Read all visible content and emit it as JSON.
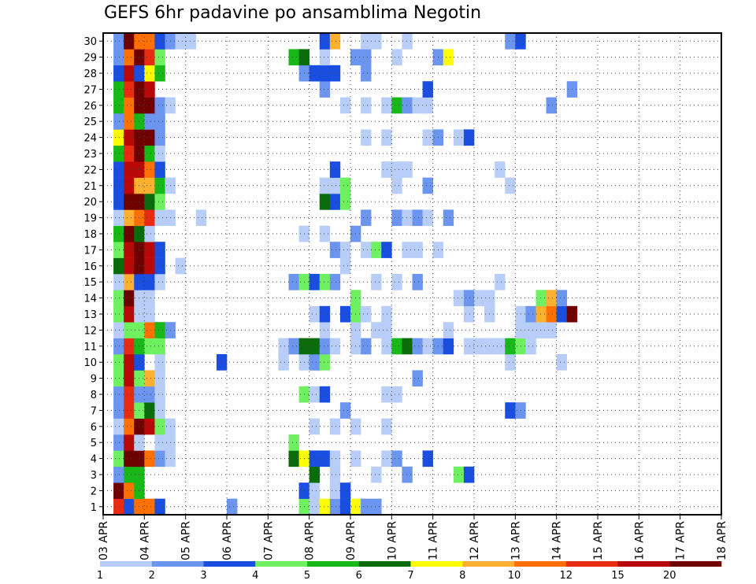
{
  "chart_data": {
    "type": "heatmap",
    "title": "GEFS 6hr padavine po ansamblima Negotin",
    "xlabel": "",
    "ylabel": "",
    "x_tick_labels": [
      "03 APR",
      "04 APR",
      "05 APR",
      "06 APR",
      "07 APR",
      "08 APR",
      "09 APR",
      "10 APR",
      "11 APR",
      "12 APR",
      "13 APR",
      "14 APR",
      "15 APR",
      "16 APR",
      "17 APR",
      "18 APR"
    ],
    "y_tick_labels": [
      "1",
      "2",
      "3",
      "4",
      "5",
      "6",
      "7",
      "8",
      "9",
      "10",
      "11",
      "12",
      "13",
      "14",
      "15",
      "16",
      "17",
      "18",
      "19",
      "20",
      "21",
      "22",
      "23",
      "24",
      "25",
      "26",
      "27",
      "28",
      "29",
      "30"
    ],
    "x_range_steps": [
      0,
      60
    ],
    "y_range_members": [
      0,
      30
    ],
    "step_hours": 6,
    "grid": "dotted",
    "colorbar": {
      "boundaries": [
        "1",
        "2",
        "3",
        "4",
        "5",
        "6",
        "7",
        "8",
        "10",
        "12",
        "15",
        "20"
      ],
      "colors": [
        "#b8cef8",
        "#6c95f0",
        "#1a4ee0",
        "#6ef060",
        "#18b818",
        "#0a6c0a",
        "#ffff00",
        "#ffb030",
        "#ff7000",
        "#e82c14",
        "#b80808",
        "#6e0000"
      ]
    },
    "legend_placement": "bottom",
    "cells": [
      [
        1,
        2,
        10
      ],
      [
        1,
        3,
        3
      ],
      [
        1,
        4,
        9
      ],
      [
        1,
        5,
        9
      ],
      [
        1,
        6,
        3
      ],
      [
        1,
        13,
        2
      ],
      [
        1,
        20,
        4
      ],
      [
        1,
        21,
        1
      ],
      [
        1,
        22,
        7
      ],
      [
        1,
        23,
        2
      ],
      [
        1,
        24,
        3
      ],
      [
        1,
        25,
        7
      ],
      [
        1,
        26,
        2
      ],
      [
        1,
        27,
        2
      ],
      [
        2,
        2,
        12
      ],
      [
        2,
        3,
        9
      ],
      [
        2,
        4,
        5
      ],
      [
        2,
        20,
        3
      ],
      [
        2,
        21,
        1
      ],
      [
        2,
        23,
        1
      ],
      [
        2,
        24,
        3
      ],
      [
        3,
        2,
        2
      ],
      [
        3,
        3,
        5
      ],
      [
        3,
        4,
        5
      ],
      [
        3,
        21,
        6
      ],
      [
        3,
        23,
        1
      ],
      [
        3,
        27,
        1
      ],
      [
        3,
        30,
        2
      ],
      [
        3,
        35,
        4
      ],
      [
        3,
        36,
        3
      ],
      [
        4,
        2,
        4
      ],
      [
        4,
        3,
        12
      ],
      [
        4,
        4,
        12
      ],
      [
        4,
        5,
        9
      ],
      [
        4,
        6,
        2
      ],
      [
        4,
        7,
        1
      ],
      [
        4,
        19,
        6
      ],
      [
        4,
        20,
        7
      ],
      [
        4,
        21,
        3
      ],
      [
        4,
        22,
        3
      ],
      [
        4,
        23,
        1
      ],
      [
        4,
        25,
        1
      ],
      [
        4,
        28,
        1
      ],
      [
        4,
        29,
        2
      ],
      [
        4,
        32,
        3
      ],
      [
        5,
        2,
        2
      ],
      [
        5,
        3,
        11
      ],
      [
        5,
        4,
        1
      ],
      [
        5,
        6,
        1
      ],
      [
        5,
        7,
        1
      ],
      [
        5,
        19,
        4
      ],
      [
        6,
        2,
        1
      ],
      [
        6,
        3,
        9
      ],
      [
        6,
        4,
        12
      ],
      [
        6,
        5,
        11
      ],
      [
        6,
        6,
        4
      ],
      [
        6,
        7,
        1
      ],
      [
        6,
        21,
        1
      ],
      [
        6,
        23,
        1
      ],
      [
        6,
        25,
        1
      ],
      [
        6,
        28,
        1
      ],
      [
        7,
        2,
        2
      ],
      [
        7,
        3,
        10
      ],
      [
        7,
        4,
        4
      ],
      [
        7,
        5,
        6
      ],
      [
        7,
        6,
        1
      ],
      [
        7,
        24,
        2
      ],
      [
        7,
        40,
        3
      ],
      [
        7,
        41,
        2
      ],
      [
        8,
        2,
        2
      ],
      [
        8,
        3,
        10
      ],
      [
        8,
        4,
        2
      ],
      [
        8,
        5,
        2
      ],
      [
        8,
        6,
        1
      ],
      [
        8,
        20,
        4
      ],
      [
        8,
        21,
        1
      ],
      [
        8,
        22,
        3
      ],
      [
        8,
        28,
        1
      ],
      [
        8,
        29,
        1
      ],
      [
        9,
        2,
        4
      ],
      [
        9,
        3,
        11
      ],
      [
        9,
        4,
        4
      ],
      [
        9,
        5,
        8
      ],
      [
        9,
        6,
        1
      ],
      [
        9,
        31,
        2
      ],
      [
        10,
        2,
        4
      ],
      [
        10,
        3,
        11
      ],
      [
        10,
        4,
        3
      ],
      [
        10,
        6,
        1
      ],
      [
        10,
        12,
        3
      ],
      [
        10,
        18,
        1
      ],
      [
        10,
        20,
        1
      ],
      [
        10,
        21,
        2
      ],
      [
        10,
        22,
        4
      ],
      [
        10,
        40,
        1
      ],
      [
        10,
        45,
        1
      ],
      [
        11,
        2,
        2
      ],
      [
        11,
        3,
        10
      ],
      [
        11,
        4,
        5
      ],
      [
        11,
        5,
        4
      ],
      [
        11,
        6,
        4
      ],
      [
        11,
        18,
        1
      ],
      [
        11,
        19,
        2
      ],
      [
        11,
        20,
        6
      ],
      [
        11,
        21,
        6
      ],
      [
        11,
        22,
        2
      ],
      [
        11,
        23,
        1
      ],
      [
        11,
        25,
        1
      ],
      [
        11,
        26,
        2
      ],
      [
        11,
        28,
        1
      ],
      [
        11,
        29,
        5
      ],
      [
        11,
        30,
        6
      ],
      [
        11,
        31,
        2
      ],
      [
        11,
        32,
        1
      ],
      [
        11,
        33,
        2
      ],
      [
        11,
        34,
        3
      ],
      [
        11,
        36,
        1
      ],
      [
        11,
        37,
        1
      ],
      [
        11,
        38,
        1
      ],
      [
        11,
        39,
        1
      ],
      [
        11,
        40,
        5
      ],
      [
        11,
        41,
        4
      ],
      [
        11,
        42,
        1
      ],
      [
        12,
        2,
        1
      ],
      [
        12,
        3,
        4
      ],
      [
        12,
        4,
        4
      ],
      [
        12,
        5,
        9
      ],
      [
        12,
        6,
        5
      ],
      [
        12,
        7,
        2
      ],
      [
        12,
        22,
        1
      ],
      [
        12,
        25,
        1
      ],
      [
        12,
        27,
        1
      ],
      [
        12,
        28,
        1
      ],
      [
        12,
        34,
        1
      ],
      [
        12,
        41,
        1
      ],
      [
        12,
        42,
        1
      ],
      [
        12,
        43,
        1
      ],
      [
        12,
        44,
        1
      ],
      [
        13,
        2,
        4
      ],
      [
        13,
        3,
        11
      ],
      [
        13,
        4,
        1
      ],
      [
        13,
        5,
        1
      ],
      [
        13,
        21,
        1
      ],
      [
        13,
        22,
        3
      ],
      [
        13,
        24,
        3
      ],
      [
        13,
        25,
        4
      ],
      [
        13,
        26,
        1
      ],
      [
        13,
        28,
        1
      ],
      [
        13,
        36,
        1
      ],
      [
        13,
        38,
        1
      ],
      [
        13,
        41,
        1
      ],
      [
        13,
        42,
        2
      ],
      [
        13,
        43,
        8
      ],
      [
        13,
        44,
        9
      ],
      [
        13,
        45,
        3
      ],
      [
        13,
        46,
        12
      ],
      [
        14,
        2,
        4
      ],
      [
        14,
        3,
        12
      ],
      [
        14,
        4,
        1
      ],
      [
        14,
        5,
        1
      ],
      [
        14,
        25,
        4
      ],
      [
        14,
        35,
        1
      ],
      [
        14,
        36,
        2
      ],
      [
        14,
        37,
        1
      ],
      [
        14,
        38,
        1
      ],
      [
        14,
        43,
        4
      ],
      [
        14,
        44,
        8
      ],
      [
        14,
        45,
        2
      ],
      [
        15,
        2,
        1
      ],
      [
        15,
        3,
        8
      ],
      [
        15,
        4,
        3
      ],
      [
        15,
        5,
        3
      ],
      [
        15,
        6,
        1
      ],
      [
        15,
        19,
        2
      ],
      [
        15,
        20,
        4
      ],
      [
        15,
        21,
        3
      ],
      [
        15,
        22,
        4
      ],
      [
        15,
        23,
        2
      ],
      [
        15,
        27,
        1
      ],
      [
        15,
        29,
        1
      ],
      [
        15,
        31,
        2
      ],
      [
        15,
        39,
        1
      ],
      [
        16,
        2,
        6
      ],
      [
        16,
        3,
        11
      ],
      [
        16,
        4,
        12
      ],
      [
        16,
        5,
        11
      ],
      [
        16,
        6,
        3
      ],
      [
        16,
        8,
        1
      ],
      [
        16,
        24,
        1
      ],
      [
        17,
        2,
        4
      ],
      [
        17,
        3,
        11
      ],
      [
        17,
        4,
        12
      ],
      [
        17,
        5,
        11
      ],
      [
        17,
        6,
        3
      ],
      [
        17,
        23,
        2
      ],
      [
        17,
        24,
        1
      ],
      [
        17,
        26,
        1
      ],
      [
        17,
        27,
        4
      ],
      [
        17,
        28,
        3
      ],
      [
        17,
        30,
        1
      ],
      [
        17,
        31,
        1
      ],
      [
        17,
        33,
        1
      ],
      [
        18,
        2,
        5
      ],
      [
        18,
        3,
        12
      ],
      [
        18,
        4,
        6
      ],
      [
        18,
        5,
        1
      ],
      [
        18,
        20,
        1
      ],
      [
        18,
        22,
        1
      ],
      [
        18,
        25,
        2
      ],
      [
        19,
        2,
        1
      ],
      [
        19,
        3,
        8
      ],
      [
        19,
        4,
        9
      ],
      [
        19,
        5,
        10
      ],
      [
        19,
        6,
        1
      ],
      [
        19,
        7,
        1
      ],
      [
        19,
        10,
        1
      ],
      [
        19,
        26,
        2
      ],
      [
        19,
        29,
        2
      ],
      [
        19,
        30,
        1
      ],
      [
        19,
        31,
        2
      ],
      [
        19,
        32,
        1
      ],
      [
        19,
        34,
        2
      ],
      [
        20,
        2,
        3
      ],
      [
        20,
        3,
        12
      ],
      [
        20,
        4,
        12
      ],
      [
        20,
        5,
        6
      ],
      [
        20,
        6,
        4
      ],
      [
        20,
        22,
        6
      ],
      [
        20,
        23,
        3
      ],
      [
        20,
        24,
        4
      ],
      [
        21,
        2,
        3
      ],
      [
        21,
        3,
        11
      ],
      [
        21,
        4,
        8
      ],
      [
        21,
        5,
        8
      ],
      [
        21,
        6,
        5
      ],
      [
        21,
        7,
        1
      ],
      [
        21,
        22,
        1
      ],
      [
        21,
        23,
        1
      ],
      [
        21,
        24,
        4
      ],
      [
        21,
        29,
        1
      ],
      [
        21,
        32,
        2
      ],
      [
        21,
        40,
        1
      ],
      [
        22,
        2,
        3
      ],
      [
        22,
        3,
        11
      ],
      [
        22,
        4,
        11
      ],
      [
        22,
        5,
        9
      ],
      [
        22,
        6,
        3
      ],
      [
        22,
        23,
        3
      ],
      [
        22,
        28,
        1
      ],
      [
        22,
        29,
        1
      ],
      [
        22,
        30,
        1
      ],
      [
        22,
        39,
        1
      ],
      [
        23,
        2,
        5
      ],
      [
        23,
        3,
        10
      ],
      [
        23,
        4,
        12
      ],
      [
        23,
        5,
        5
      ],
      [
        23,
        6,
        1
      ],
      [
        24,
        2,
        7
      ],
      [
        24,
        3,
        11
      ],
      [
        24,
        4,
        12
      ],
      [
        24,
        5,
        12
      ],
      [
        24,
        6,
        2
      ],
      [
        24,
        26,
        1
      ],
      [
        24,
        28,
        1
      ],
      [
        24,
        32,
        1
      ],
      [
        24,
        33,
        2
      ],
      [
        24,
        35,
        1
      ],
      [
        24,
        36,
        3
      ],
      [
        25,
        2,
        2
      ],
      [
        25,
        3,
        9
      ],
      [
        25,
        4,
        5
      ],
      [
        25,
        5,
        2
      ],
      [
        25,
        6,
        2
      ],
      [
        26,
        2,
        5
      ],
      [
        26,
        3,
        9
      ],
      [
        26,
        4,
        12
      ],
      [
        26,
        5,
        12
      ],
      [
        26,
        6,
        2
      ],
      [
        26,
        7,
        1
      ],
      [
        26,
        24,
        1
      ],
      [
        26,
        26,
        1
      ],
      [
        26,
        28,
        1
      ],
      [
        26,
        29,
        5
      ],
      [
        26,
        30,
        2
      ],
      [
        26,
        31,
        1
      ],
      [
        26,
        32,
        1
      ],
      [
        26,
        44,
        2
      ],
      [
        27,
        2,
        5
      ],
      [
        27,
        3,
        10
      ],
      [
        27,
        4,
        12
      ],
      [
        27,
        5,
        11
      ],
      [
        27,
        22,
        2
      ],
      [
        27,
        32,
        3
      ],
      [
        27,
        46,
        2
      ],
      [
        28,
        2,
        3
      ],
      [
        28,
        3,
        11
      ],
      [
        28,
        4,
        3
      ],
      [
        28,
        5,
        7
      ],
      [
        28,
        6,
        5
      ],
      [
        28,
        20,
        2
      ],
      [
        28,
        21,
        3
      ],
      [
        28,
        22,
        3
      ],
      [
        28,
        23,
        3
      ],
      [
        28,
        26,
        2
      ],
      [
        29,
        2,
        2
      ],
      [
        29,
        3,
        9
      ],
      [
        29,
        4,
        12
      ],
      [
        29,
        5,
        10
      ],
      [
        29,
        6,
        4
      ],
      [
        29,
        19,
        5
      ],
      [
        29,
        20,
        6
      ],
      [
        29,
        22,
        1
      ],
      [
        29,
        25,
        2
      ],
      [
        29,
        26,
        2
      ],
      [
        29,
        29,
        1
      ],
      [
        29,
        33,
        2
      ],
      [
        29,
        34,
        7
      ],
      [
        30,
        2,
        2
      ],
      [
        30,
        3,
        12
      ],
      [
        30,
        4,
        9
      ],
      [
        30,
        5,
        9
      ],
      [
        30,
        6,
        3
      ],
      [
        30,
        7,
        2
      ],
      [
        30,
        8,
        1
      ],
      [
        30,
        9,
        1
      ],
      [
        30,
        22,
        3
      ],
      [
        30,
        23,
        8
      ],
      [
        30,
        26,
        1
      ],
      [
        30,
        27,
        1
      ],
      [
        30,
        30,
        1
      ],
      [
        30,
        40,
        2
      ],
      [
        30,
        41,
        3
      ]
    ]
  }
}
